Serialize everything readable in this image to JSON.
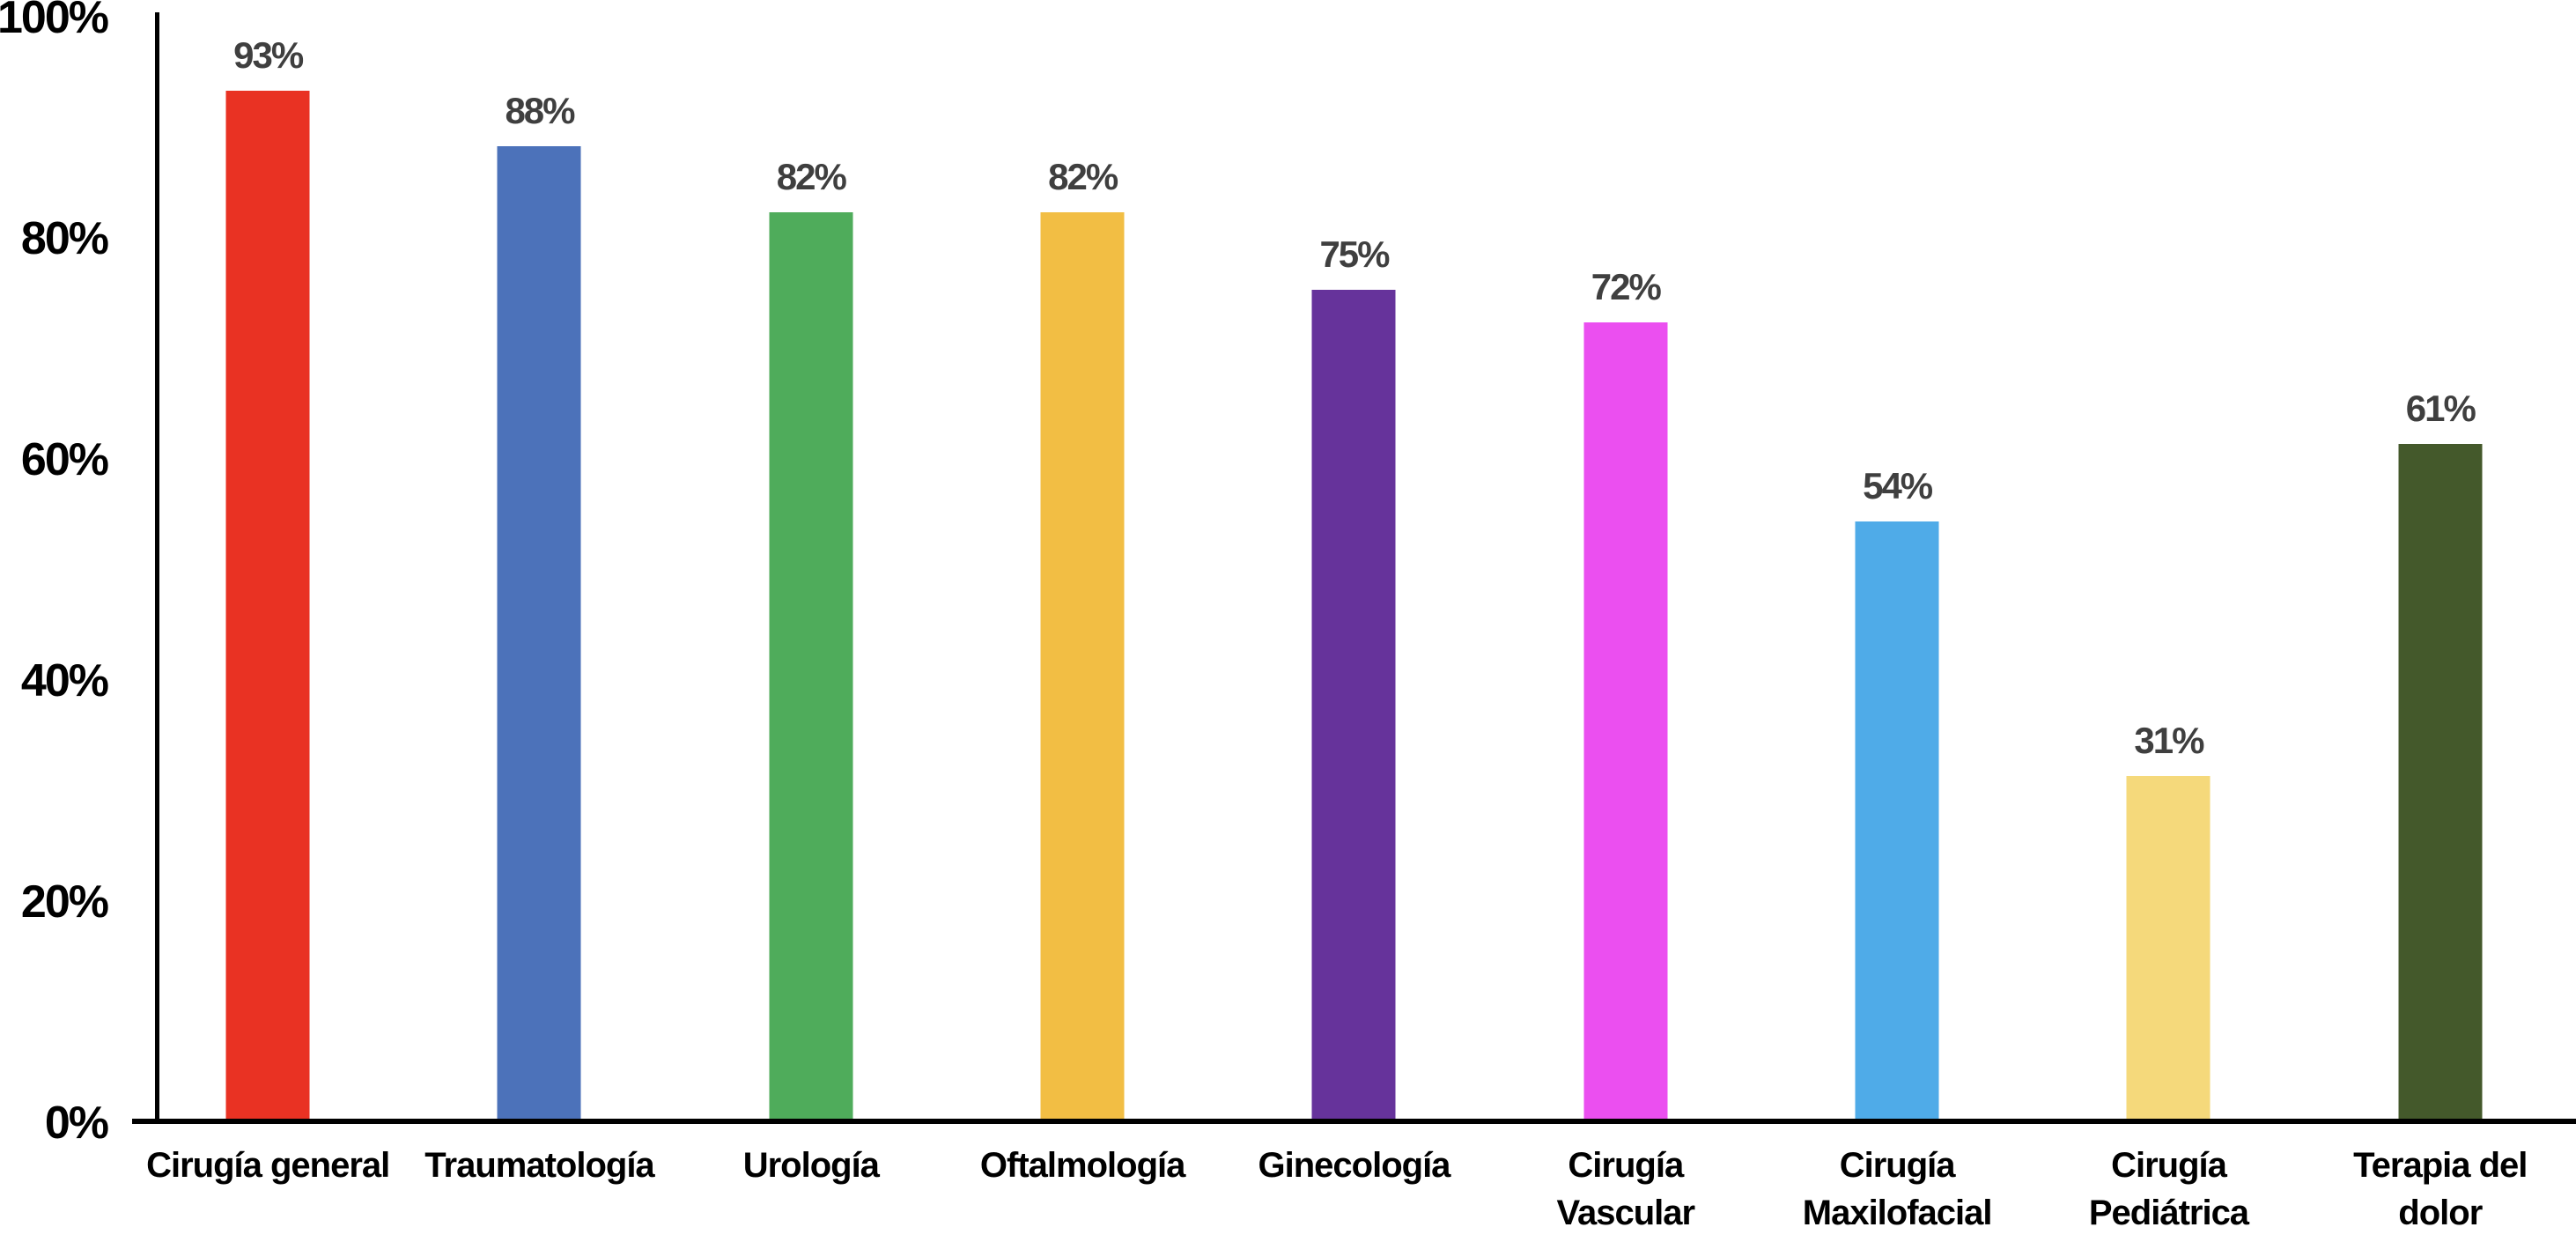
{
  "chart_data": {
    "type": "bar",
    "title": "",
    "xlabel": "",
    "ylabel": "",
    "ylim": [
      0,
      100
    ],
    "grid": false,
    "legend": "none",
    "y_ticks": [
      {
        "label": "0%",
        "value": 0
      },
      {
        "label": "20%",
        "value": 20
      },
      {
        "label": "40%",
        "value": 40
      },
      {
        "label": "60%",
        "value": 60
      },
      {
        "label": "80%",
        "value": 80
      },
      {
        "label": "100%",
        "value": 100
      }
    ],
    "categories": [
      "Cirugía general",
      "Traumatología",
      "Urología",
      "Oftalmología",
      "Ginecología",
      "Cirugía Vascular",
      "Cirugía Maxilofacial",
      "Cirugía Pediátrica",
      "Terapia del dolor"
    ],
    "x_tick_lines": [
      [
        "Cirugía general"
      ],
      [
        "Traumatología"
      ],
      [
        "Urología"
      ],
      [
        "Oftalmología"
      ],
      [
        "Ginecología"
      ],
      [
        "Cirugía",
        "Vascular"
      ],
      [
        "Cirugía",
        "Maxilofacial"
      ],
      [
        "Cirugía",
        "Pediátrica"
      ],
      [
        "Terapia del",
        "dolor"
      ]
    ],
    "values": [
      93,
      88,
      82,
      82,
      75,
      72,
      54,
      31,
      61
    ],
    "value_labels": [
      "93%",
      "88%",
      "82%",
      "82%",
      "75%",
      "72%",
      "54%",
      "31%",
      "61%"
    ],
    "bar_colors": [
      "#E93223",
      "#4C72BA",
      "#4FAC5B",
      "#F2BE44",
      "#66339B",
      "#EB4FF0",
      "#4FABE8",
      "#F5D97B",
      "#44592B"
    ]
  },
  "colors": {
    "background": "#FFFFFF",
    "axis": "#000000",
    "value_label_text": "#3F3F3F",
    "category_label_text": "#000000"
  }
}
